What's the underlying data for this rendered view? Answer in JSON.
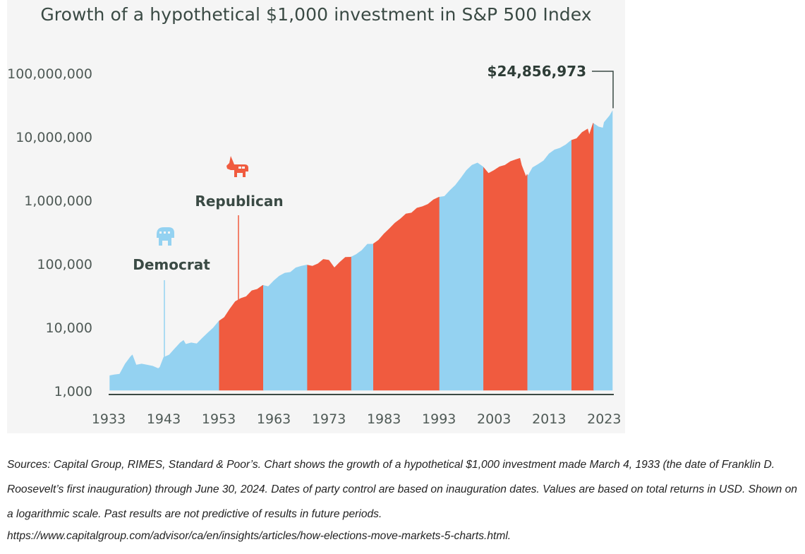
{
  "chart_data": {
    "type": "area",
    "title": "Growth of a hypothetical $1,000 investment in S&P 500 Index",
    "xlabel": "",
    "ylabel": "",
    "y_scale": "log",
    "ylim": [
      1000,
      100000000
    ],
    "xlim": [
      1933,
      2024.5
    ],
    "x_ticks": [
      "1933",
      "1943",
      "1953",
      "1963",
      "1973",
      "1983",
      "1993",
      "2003",
      "2013",
      "2023"
    ],
    "y_ticks": [
      "1,000",
      "10,000",
      "100,000",
      "1,000,000",
      "10,000,000",
      "100,000,000"
    ],
    "grid": false,
    "legend": [
      {
        "label": "Democrat",
        "color": "#94d2f1",
        "icon": "elephant-icon"
      },
      {
        "label": "Republican",
        "color": "#f05b3f",
        "icon": "donkey-icon"
      }
    ],
    "annotation": {
      "text": "$24,856,973",
      "x": 2024.5,
      "y": 24856973
    },
    "party_periods": [
      {
        "party": "Democrat",
        "start": 1933.2,
        "end": 1953.1
      },
      {
        "party": "Republican",
        "start": 1953.1,
        "end": 1961.1
      },
      {
        "party": "Democrat",
        "start": 1961.1,
        "end": 1969.1
      },
      {
        "party": "Republican",
        "start": 1969.1,
        "end": 1977.1
      },
      {
        "party": "Democrat",
        "start": 1977.1,
        "end": 1981.1
      },
      {
        "party": "Republican",
        "start": 1981.1,
        "end": 1993.1
      },
      {
        "party": "Democrat",
        "start": 1993.1,
        "end": 2001.1
      },
      {
        "party": "Republican",
        "start": 2001.1,
        "end": 2009.1
      },
      {
        "party": "Democrat",
        "start": 2009.1,
        "end": 2017.1
      },
      {
        "party": "Republican",
        "start": 2017.1,
        "end": 2021.1
      },
      {
        "party": "Democrat",
        "start": 2021.1,
        "end": 2024.5
      }
    ],
    "series": [
      {
        "x": [
          1933.2,
          1934,
          1935,
          1936,
          1937,
          1937.3,
          1938,
          1939,
          1940,
          1941,
          1942,
          1942.3,
          1943,
          1944,
          1945,
          1946,
          1946.6,
          1947,
          1948,
          1949,
          1950,
          1951,
          1952,
          1953,
          1954,
          1955,
          1956,
          1957,
          1958,
          1959,
          1960,
          1961,
          1962,
          1963,
          1964,
          1965,
          1966,
          1967,
          1968,
          1969,
          1970,
          1971,
          1972,
          1973,
          1974,
          1975,
          1976,
          1977,
          1978,
          1979,
          1980,
          1981,
          1982,
          1983,
          1984,
          1985,
          1986,
          1987,
          1988,
          1989,
          1990,
          1991,
          1992,
          1993,
          1994,
          1995,
          1996,
          1997,
          1998,
          1999,
          2000,
          2001,
          2002,
          2003,
          2004,
          2005,
          2006,
          2007,
          2007.7,
          2008,
          2008.8,
          2009,
          2009.2,
          2010,
          2011,
          2012,
          2013,
          2014,
          2015,
          2016,
          2017,
          2018,
          2019,
          2020,
          2020.3,
          2021,
          2022,
          2022.8,
          2023,
          2024,
          2024.5
        ],
        "values": [
          1700,
          1750,
          1800,
          2600,
          3400,
          3600,
          2500,
          2600,
          2500,
          2400,
          2200,
          2300,
          3300,
          3600,
          4500,
          5600,
          6100,
          5300,
          5600,
          5400,
          6600,
          8000,
          9600,
          12200,
          14000,
          19000,
          25000,
          28000,
          30000,
          37000,
          39000,
          45000,
          43000,
          53000,
          63000,
          70000,
          72000,
          85000,
          90000,
          94000,
          90000,
          98000,
          115000,
          112000,
          85000,
          104000,
          124000,
          125000,
          138000,
          160000,
          200000,
          200000,
          230000,
          290000,
          350000,
          430000,
          500000,
          600000,
          620000,
          740000,
          780000,
          850000,
          1000000,
          1100000,
          1130000,
          1400000,
          1700000,
          2200000,
          2900000,
          3500000,
          3800000,
          3300000,
          2600000,
          2900000,
          3300000,
          3500000,
          4000000,
          4300000,
          4500000,
          3500000,
          2300000,
          2500000,
          2400000,
          3200000,
          3600000,
          4100000,
          5300000,
          6100000,
          6500000,
          7300000,
          8600000,
          9200000,
          11500000,
          13000000,
          10500000,
          16000000,
          14000000,
          13500000,
          16500000,
          21000000,
          24856973
        ]
      }
    ]
  },
  "caption": "Sources: Capital Group, RIMES, Standard & Poor’s. Chart shows the growth of a hypothetical $1,000 investment made March 4, 1933 (the date of Franklin D. Roosevelt’s first inauguration) through June 30, 2024. Dates of party control are based on inauguration dates. Values are based on total returns in USD. Shown on a logarithmic scale. Past results are not predictive of results in future periods.",
  "source_url": "https://www.capitalgroup.com/advisor/ca/en/insights/articles/how-elections-move-markets-5-charts.html."
}
